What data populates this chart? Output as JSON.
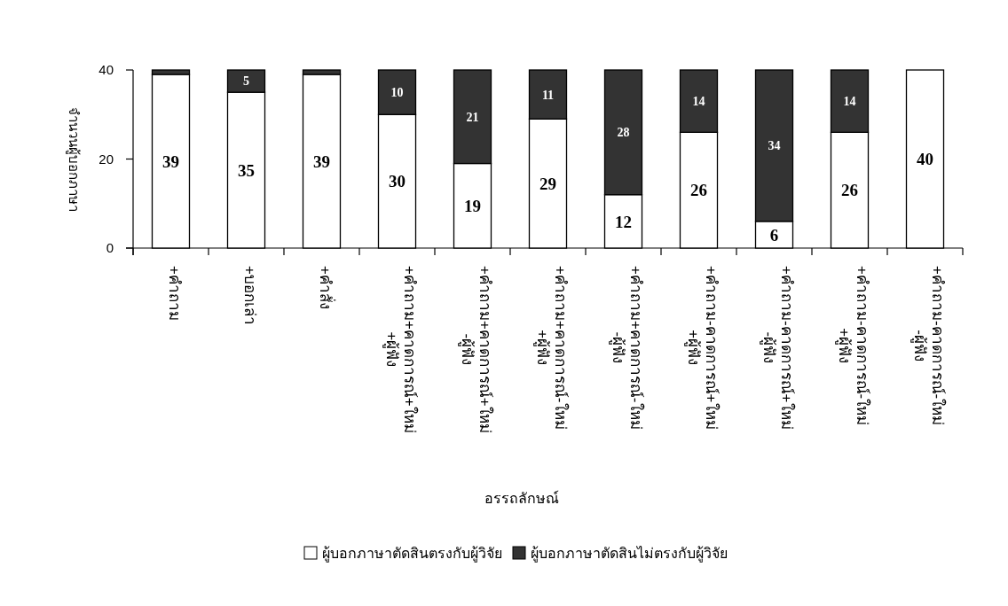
{
  "chart_data": {
    "type": "bar",
    "stacked": true,
    "xlabel": "อรรถลักษณ์",
    "ylabel": "จำนวนผู้บอกภาษา",
    "categories": [
      "+คำถาม",
      "+บอกเล่า",
      "+คำสั่ง",
      "+คำถาม+คาดการณ์+ใหม่\n+ผู้ฟัง",
      "+คำถาม+คาดการณ์+ใหม่\n-ผู้ฟัง",
      "+คำถาม+คาดการณ์-ใหม่\n+ผู้ฟัง",
      "+คำถาม+คาดการณ์-ใหม่\n-ผู้ฟัง",
      "+คำถาม-คาดการณ์+ใหม่\n+ผู้ฟัง",
      "+คำถาม-คาดการณ์+ใหม่\n-ผู้ฟัง",
      "+คำถาม-คาดการณ์-ใหม่\n+ผู้ฟัง",
      "+คำถาม-คาดการณ์-ใหม่\n-ผู้ฟัง"
    ],
    "series": [
      {
        "name": "ผู้บอกภาษาตัดสินตรงกับผู้วิจัย",
        "color": "#ffffff",
        "values": [
          39,
          35,
          39,
          30,
          19,
          29,
          12,
          26,
          6,
          26,
          40
        ],
        "value_labels": [
          "39",
          "35",
          "39",
          "30",
          "19",
          "29",
          "12",
          "26",
          "6",
          "26",
          "40"
        ]
      },
      {
        "name": "ผู้บอกภาษาตัดสินไม่ตรงกับผู้วิจัย",
        "color": "#333333",
        "values": [
          1,
          5,
          1,
          10,
          21,
          11,
          28,
          14,
          34,
          14,
          0
        ],
        "value_labels": [
          null,
          "5",
          null,
          "10",
          "21",
          "11",
          "28",
          "14",
          "34",
          "14",
          null
        ]
      }
    ],
    "ylim": [
      0,
      40
    ],
    "yticks": [
      0,
      20,
      40
    ],
    "grid": false,
    "legend": "bottom"
  }
}
